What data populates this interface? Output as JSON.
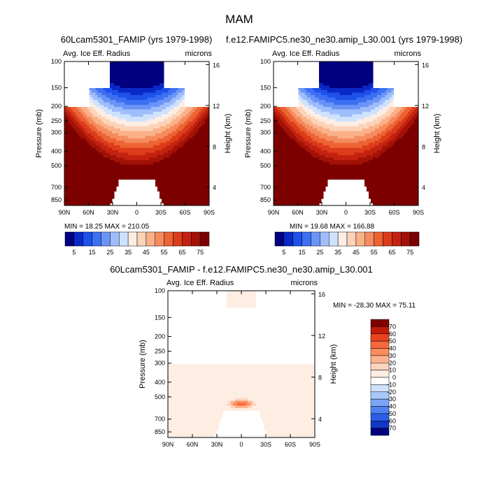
{
  "figure": {
    "title": "MAM",
    "panel1_title": "60Lcam5301_FAMIP (yrs 1979-1998)",
    "panel2_title": "f.e12.FAMIPC5.ne30_ne30.amip_L30.001 (yrs 1979-1998)",
    "panel3_title": "60Lcam5301_FAMIP - f.e12.FAMIPC5.ne30_ne30.amip_L30.001",
    "variable": "Avg. Ice Eff. Radius",
    "units": "microns"
  },
  "chart_data": [
    {
      "type": "heatmap",
      "title": "60Lcam5301_FAMIP (yrs 1979-1998)",
      "variable": "Avg. Ice Eff. Radius",
      "units": "microns",
      "xlabel": "",
      "ylabel": "Pressure (mb)",
      "ylabel_right": "Height (km)",
      "x_ticks": [
        "90N",
        "60N",
        "30N",
        "0",
        "30S",
        "60S",
        "90S"
      ],
      "x_values": [
        90,
        60,
        30,
        0,
        -30,
        -60,
        -90
      ],
      "y_ticks": [
        100,
        150,
        200,
        250,
        300,
        400,
        500,
        700,
        850
      ],
      "y_log": true,
      "ylim": [
        100,
        925
      ],
      "height_ticks": [
        4,
        8,
        12,
        16
      ],
      "min_label": "MIN = ",
      "min": "18.25",
      "max_label": "MAX = ",
      "max": "210.05",
      "colorbar_labels": [
        "5",
        "15",
        "25",
        "35",
        "45",
        "55",
        "65",
        "75"
      ],
      "colorbar_levels": [
        5,
        10,
        15,
        20,
        25,
        30,
        35,
        40,
        45,
        50,
        55,
        60,
        65,
        70,
        75
      ],
      "colorbar_colors": [
        "#000080",
        "#0a28c8",
        "#1e50ea",
        "#3c6ff2",
        "#6a94f6",
        "#9ebdfa",
        "#cfe2fd",
        "#fdeee4",
        "#fcd3b8",
        "#fab188",
        "#f58b5e",
        "#ec6334",
        "#dd3c1a",
        "#c32210",
        "#a31206",
        "#7d0000"
      ],
      "colorbar_orientation": "horizontal"
    },
    {
      "type": "heatmap",
      "title": "f.e12.FAMIPC5.ne30_ne30.amip_L30.001 (yrs 1979-1998)",
      "variable": "Avg. Ice Eff. Radius",
      "units": "microns",
      "xlabel": "",
      "ylabel": "Pressure (mb)",
      "ylabel_right": "Height (km)",
      "x_ticks": [
        "90N",
        "60N",
        "30N",
        "0",
        "30S",
        "60S",
        "90S"
      ],
      "x_values": [
        90,
        60,
        30,
        0,
        -30,
        -60,
        -90
      ],
      "y_ticks": [
        100,
        150,
        200,
        250,
        300,
        400,
        500,
        700,
        850
      ],
      "y_log": true,
      "ylim": [
        100,
        925
      ],
      "height_ticks": [
        4,
        8,
        12,
        16
      ],
      "min_label": "MIN = ",
      "min": "19.68",
      "max_label": "MAX = ",
      "max": "166.88",
      "colorbar_labels": [
        "5",
        "15",
        "25",
        "35",
        "45",
        "55",
        "65",
        "75"
      ],
      "colorbar_levels": [
        5,
        10,
        15,
        20,
        25,
        30,
        35,
        40,
        45,
        50,
        55,
        60,
        65,
        70,
        75
      ],
      "colorbar_colors": [
        "#000080",
        "#0a28c8",
        "#1e50ea",
        "#3c6ff2",
        "#6a94f6",
        "#9ebdfa",
        "#cfe2fd",
        "#fdeee4",
        "#fcd3b8",
        "#fab188",
        "#f58b5e",
        "#ec6334",
        "#dd3c1a",
        "#c32210",
        "#a31206",
        "#7d0000"
      ],
      "colorbar_orientation": "horizontal"
    },
    {
      "type": "heatmap",
      "title": "60Lcam5301_FAMIP - f.e12.FAMIPC5.ne30_ne30.amip_L30.001",
      "variable": "Avg. Ice Eff. Radius",
      "units": "microns",
      "xlabel": "",
      "ylabel": "Pressure (mb)",
      "ylabel_right": "Height (km)",
      "x_ticks": [
        "90N",
        "60N",
        "30N",
        "0",
        "30S",
        "60S",
        "90S"
      ],
      "x_values": [
        90,
        60,
        30,
        0,
        -30,
        -60,
        -90
      ],
      "y_ticks": [
        100,
        150,
        200,
        250,
        300,
        400,
        500,
        700,
        850
      ],
      "y_log": true,
      "ylim": [
        100,
        925
      ],
      "height_ticks": [
        4,
        8,
        12,
        16
      ],
      "min_label": "MIN = ",
      "min": "-28.30",
      "max_label": "MAX = ",
      "max": "75.11",
      "colorbar_labels": [
        "70",
        "60",
        "50",
        "40",
        "30",
        "20",
        "10",
        "0",
        "-10",
        "-20",
        "-30",
        "-40",
        "-50",
        "-60",
        "-70"
      ],
      "colorbar_levels": [
        70,
        60,
        50,
        40,
        30,
        20,
        10,
        0,
        -10,
        -20,
        -30,
        -40,
        -50,
        -60,
        -70
      ],
      "colorbar_colors": [
        "#7d0000",
        "#c01a0a",
        "#e8431c",
        "#f7683a",
        "#fa8c5e",
        "#fcb28e",
        "#fdd3bc",
        "#fdede3",
        "#ffffff",
        "#cfe2fd",
        "#a7c8fb",
        "#7aa6f8",
        "#4f82f2",
        "#2b5de6",
        "#1238c8",
        "#000080"
      ],
      "colorbar_orientation": "vertical"
    }
  ]
}
